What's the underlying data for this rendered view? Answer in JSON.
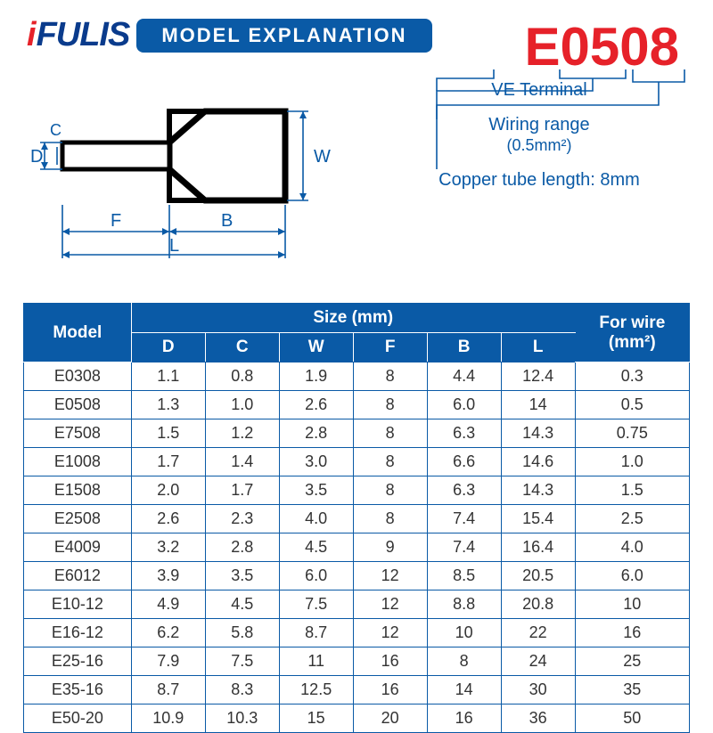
{
  "brand": {
    "i": "i",
    "rest": "FULIS"
  },
  "title": "MODEL EXPLANATION",
  "model_display": "E0508",
  "explanations": [
    {
      "label": "VE Terminal"
    },
    {
      "label": "Wiring range",
      "sub": "(0.5mm²)"
    },
    {
      "label": "Copper tube length: 8mm"
    }
  ],
  "diagram": {
    "labels": {
      "D": "D",
      "C": "C",
      "W": "W",
      "F": "F",
      "B": "B",
      "L": "L"
    },
    "stroke": "#0a5aa6",
    "shape_stroke": "#000000",
    "stroke_width": 2,
    "shape_width": 6
  },
  "table": {
    "header_bg": "#0a5aa6",
    "header_fg": "#ffffff",
    "border": "#0a5aa6",
    "model_header": "Model",
    "size_header": "Size (mm)",
    "wire_header": "For wire (mm²)",
    "size_cols": [
      "D",
      "C",
      "W",
      "F",
      "B",
      "L"
    ],
    "rows": [
      {
        "model": "E0308",
        "D": "1.1",
        "C": "0.8",
        "W": "1.9",
        "F": "8",
        "B": "4.4",
        "L": "12.4",
        "wire": "0.3"
      },
      {
        "model": "E0508",
        "D": "1.3",
        "C": "1.0",
        "W": "2.6",
        "F": "8",
        "B": "6.0",
        "L": "14",
        "wire": "0.5"
      },
      {
        "model": "E7508",
        "D": "1.5",
        "C": "1.2",
        "W": "2.8",
        "F": "8",
        "B": "6.3",
        "L": "14.3",
        "wire": "0.75"
      },
      {
        "model": "E1008",
        "D": "1.7",
        "C": "1.4",
        "W": "3.0",
        "F": "8",
        "B": "6.6",
        "L": "14.6",
        "wire": "1.0"
      },
      {
        "model": "E1508",
        "D": "2.0",
        "C": "1.7",
        "W": "3.5",
        "F": "8",
        "B": "6.3",
        "L": "14.3",
        "wire": "1.5"
      },
      {
        "model": "E2508",
        "D": "2.6",
        "C": "2.3",
        "W": "4.0",
        "F": "8",
        "B": "7.4",
        "L": "15.4",
        "wire": "2.5"
      },
      {
        "model": "E4009",
        "D": "3.2",
        "C": "2.8",
        "W": "4.5",
        "F": "9",
        "B": "7.4",
        "L": "16.4",
        "wire": "4.0"
      },
      {
        "model": "E6012",
        "D": "3.9",
        "C": "3.5",
        "W": "6.0",
        "F": "12",
        "B": "8.5",
        "L": "20.5",
        "wire": "6.0"
      },
      {
        "model": "E10-12",
        "D": "4.9",
        "C": "4.5",
        "W": "7.5",
        "F": "12",
        "B": "8.8",
        "L": "20.8",
        "wire": "10"
      },
      {
        "model": "E16-12",
        "D": "6.2",
        "C": "5.8",
        "W": "8.7",
        "F": "12",
        "B": "10",
        "L": "22",
        "wire": "16"
      },
      {
        "model": "E25-16",
        "D": "7.9",
        "C": "7.5",
        "W": "11",
        "F": "16",
        "B": "8",
        "L": "24",
        "wire": "25"
      },
      {
        "model": "E35-16",
        "D": "8.7",
        "C": "8.3",
        "W": "12.5",
        "F": "16",
        "B": "14",
        "L": "30",
        "wire": "35"
      },
      {
        "model": "E50-20",
        "D": "10.9",
        "C": "10.3",
        "W": "15",
        "F": "20",
        "B": "16",
        "L": "36",
        "wire": "50"
      }
    ]
  },
  "colors": {
    "brand_red": "#e62129",
    "brand_blue": "#0a3b8c",
    "accent_blue": "#0a5aa6",
    "bg": "#ffffff",
    "text": "#333333"
  }
}
